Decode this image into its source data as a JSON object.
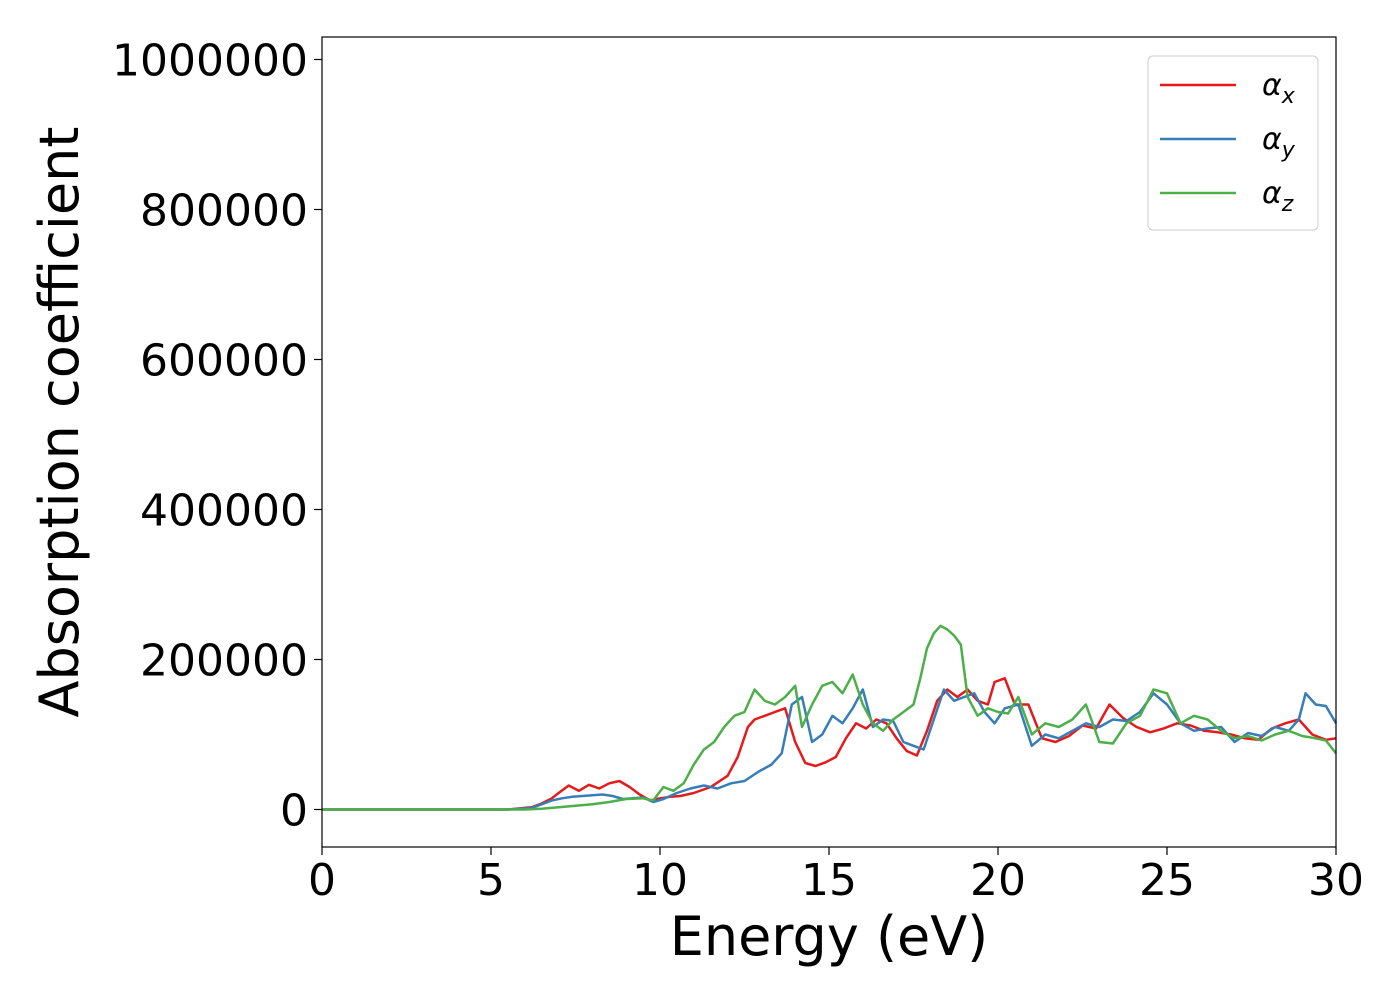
{
  "chart_data": {
    "type": "line",
    "title": "",
    "xlabel": "Energy (eV)",
    "ylabel": "Absorption coefficient",
    "xlim": [
      0,
      30
    ],
    "ylim": [
      -50000,
      1030000
    ],
    "xticks": [
      0,
      5,
      10,
      15,
      20,
      25,
      30
    ],
    "yticks": [
      0,
      200000,
      400000,
      600000,
      800000,
      1000000
    ],
    "grid": false,
    "legend_position": "top-right",
    "series": [
      {
        "name": "α_x",
        "name_main": "α",
        "name_sub": "x",
        "color": "#e41a1c",
        "x": [
          0,
          5.5,
          6.2,
          6.5,
          6.8,
          7.0,
          7.3,
          7.6,
          7.9,
          8.2,
          8.5,
          8.8,
          9.1,
          9.4,
          9.7,
          10.0,
          10.3,
          10.6,
          11.0,
          11.5,
          12.0,
          12.3,
          12.6,
          12.8,
          13.1,
          13.4,
          13.7,
          14.0,
          14.3,
          14.6,
          14.9,
          15.2,
          15.5,
          15.8,
          16.1,
          16.4,
          16.7,
          17.0,
          17.3,
          17.6,
          17.9,
          18.2,
          18.5,
          18.8,
          19.1,
          19.4,
          19.7,
          19.9,
          20.2,
          20.5,
          20.9,
          21.3,
          21.7,
          22.1,
          22.5,
          22.9,
          23.3,
          23.7,
          24.1,
          24.5,
          24.9,
          25.3,
          25.7,
          26.1,
          26.5,
          26.9,
          27.3,
          27.7,
          28.1,
          28.5,
          28.9,
          29.3,
          29.7,
          30.0
        ],
        "y": [
          0,
          0,
          3000,
          8000,
          15000,
          22000,
          32000,
          25000,
          33000,
          28000,
          35000,
          38000,
          30000,
          20000,
          12000,
          15000,
          17000,
          18000,
          22000,
          30000,
          45000,
          70000,
          110000,
          120000,
          125000,
          130000,
          135000,
          90000,
          62000,
          58000,
          63000,
          70000,
          95000,
          115000,
          108000,
          120000,
          115000,
          95000,
          78000,
          72000,
          105000,
          145000,
          160000,
          150000,
          160000,
          145000,
          140000,
          170000,
          175000,
          140000,
          140000,
          95000,
          90000,
          98000,
          112000,
          108000,
          140000,
          122000,
          110000,
          103000,
          108000,
          115000,
          112000,
          105000,
          103000,
          100000,
          95000,
          93000,
          108000,
          115000,
          120000,
          100000,
          93000,
          95000
        ]
      },
      {
        "name": "α_y",
        "name_main": "α",
        "name_sub": "y",
        "color": "#377eb8",
        "x": [
          0,
          5.5,
          6.2,
          6.5,
          6.8,
          7.1,
          7.4,
          7.7,
          8.0,
          8.3,
          8.6,
          8.9,
          9.2,
          9.5,
          9.8,
          10.1,
          10.5,
          10.9,
          11.3,
          11.7,
          12.1,
          12.5,
          12.9,
          13.3,
          13.6,
          13.9,
          14.2,
          14.5,
          14.8,
          15.1,
          15.4,
          15.7,
          16.0,
          16.3,
          16.6,
          16.9,
          17.2,
          17.5,
          17.8,
          18.1,
          18.4,
          18.7,
          19.0,
          19.3,
          19.6,
          19.9,
          20.2,
          20.6,
          21.0,
          21.4,
          21.8,
          22.2,
          22.6,
          23.0,
          23.4,
          23.8,
          24.2,
          24.6,
          25.0,
          25.4,
          25.8,
          26.2,
          26.6,
          27.0,
          27.4,
          27.8,
          28.2,
          28.6,
          28.9,
          29.1,
          29.4,
          29.7,
          30.0
        ],
        "y": [
          0,
          0,
          2000,
          7000,
          12000,
          15000,
          17000,
          18000,
          19000,
          20000,
          18000,
          14000,
          15000,
          16000,
          10000,
          14000,
          22000,
          28000,
          32000,
          28000,
          35000,
          38000,
          50000,
          60000,
          75000,
          140000,
          150000,
          90000,
          100000,
          125000,
          115000,
          135000,
          160000,
          110000,
          120000,
          118000,
          90000,
          85000,
          80000,
          120000,
          160000,
          145000,
          150000,
          155000,
          130000,
          115000,
          135000,
          140000,
          85000,
          100000,
          95000,
          105000,
          115000,
          110000,
          120000,
          118000,
          130000,
          155000,
          140000,
          115000,
          105000,
          108000,
          110000,
          90000,
          102000,
          98000,
          110000,
          105000,
          120000,
          155000,
          140000,
          138000,
          115000
        ]
      },
      {
        "name": "α_z",
        "name_main": "α",
        "name_sub": "z",
        "color": "#4daf4a",
        "x": [
          0,
          6.0,
          6.5,
          7.0,
          7.5,
          8.0,
          8.5,
          9.0,
          9.5,
          9.8,
          10.1,
          10.4,
          10.7,
          11.0,
          11.3,
          11.6,
          11.9,
          12.2,
          12.5,
          12.8,
          13.1,
          13.4,
          13.7,
          14.0,
          14.2,
          14.5,
          14.8,
          15.1,
          15.4,
          15.7,
          16.0,
          16.3,
          16.6,
          16.9,
          17.2,
          17.5,
          17.7,
          17.9,
          18.1,
          18.3,
          18.5,
          18.7,
          18.9,
          19.1,
          19.4,
          19.7,
          20.0,
          20.3,
          20.6,
          21.0,
          21.4,
          21.8,
          22.2,
          22.6,
          23.0,
          23.4,
          23.8,
          24.2,
          24.6,
          25.0,
          25.4,
          25.8,
          26.2,
          26.6,
          27.0,
          27.4,
          27.8,
          28.2,
          28.6,
          29.0,
          29.4,
          29.7,
          30.0
        ],
        "y": [
          0,
          0,
          1000,
          3000,
          5000,
          7000,
          10000,
          14000,
          15000,
          12000,
          30000,
          25000,
          35000,
          60000,
          80000,
          90000,
          110000,
          125000,
          130000,
          160000,
          145000,
          140000,
          150000,
          165000,
          110000,
          140000,
          165000,
          170000,
          155000,
          180000,
          140000,
          115000,
          105000,
          120000,
          130000,
          140000,
          175000,
          215000,
          235000,
          245000,
          240000,
          232000,
          220000,
          150000,
          125000,
          135000,
          130000,
          128000,
          150000,
          100000,
          115000,
          110000,
          120000,
          140000,
          90000,
          88000,
          115000,
          125000,
          160000,
          155000,
          115000,
          125000,
          120000,
          105000,
          95000,
          98000,
          92000,
          100000,
          105000,
          98000,
          95000,
          92000,
          75000
        ]
      }
    ]
  }
}
